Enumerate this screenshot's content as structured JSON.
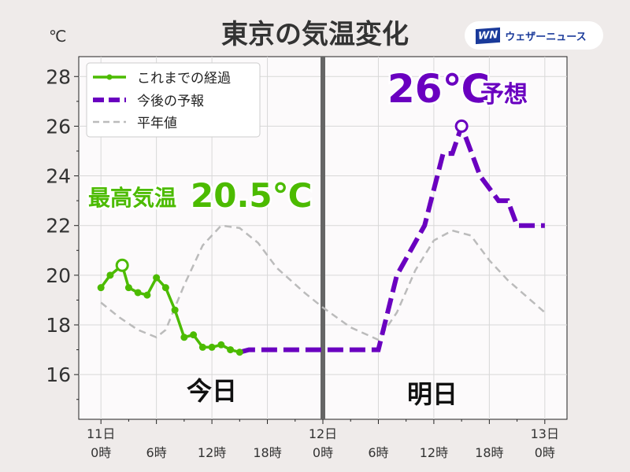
{
  "chart_data": {
    "type": "line",
    "title": "東京の気温変化",
    "ylabel": "℃",
    "ylim": [
      14.2,
      28.8
    ],
    "xlim": [
      -2.4,
      50.4
    ],
    "yticks": [
      16,
      18,
      20,
      22,
      24,
      26,
      28
    ],
    "xticks": [
      {
        "x": 0,
        "l1": "11日",
        "l2": "0時"
      },
      {
        "x": 6,
        "l1": "",
        "l2": "6時"
      },
      {
        "x": 12,
        "l1": "",
        "l2": "12時"
      },
      {
        "x": 18,
        "l1": "",
        "l2": "18時"
      },
      {
        "x": 24,
        "l1": "12日",
        "l2": "0時"
      },
      {
        "x": 30,
        "l1": "",
        "l2": "6時"
      },
      {
        "x": 36,
        "l1": "",
        "l2": "12時"
      },
      {
        "x": 42,
        "l1": "",
        "l2": "18時"
      },
      {
        "x": 48,
        "l1": "13日",
        "l2": "0時"
      }
    ],
    "series": [
      {
        "name": "これまでの経過",
        "color": "#4cbb00",
        "x": [
          0,
          1,
          2.3,
          3,
          4,
          5,
          6,
          7,
          8,
          9,
          10,
          11,
          12,
          13,
          14,
          15
        ],
        "y": [
          19.5,
          20.0,
          20.4,
          19.5,
          19.3,
          19.2,
          19.9,
          19.5,
          18.6,
          17.5,
          17.6,
          17.1,
          17.1,
          17.2,
          17.0,
          16.9
        ]
      },
      {
        "name": "今後の予報",
        "color": "#6a00c0",
        "x": [
          15,
          16,
          30,
          32,
          35,
          37,
          38,
          39,
          41,
          43,
          44,
          45,
          48
        ],
        "y": [
          16.9,
          17,
          17,
          20,
          22,
          24.9,
          24.9,
          26,
          24,
          23,
          23,
          22,
          22
        ]
      },
      {
        "name": "平年値",
        "color": "#bbbbbb",
        "x": [
          0,
          2,
          4,
          6,
          7,
          9,
          11,
          13,
          15,
          17,
          19,
          22,
          24,
          27,
          30,
          32,
          34,
          36,
          38,
          40,
          42,
          44,
          48
        ],
        "y": [
          18.9,
          18.3,
          17.8,
          17.5,
          17.8,
          19.6,
          21.2,
          22.0,
          21.9,
          21.3,
          20.3,
          19.3,
          18.7,
          17.9,
          17.4,
          18.5,
          20.2,
          21.4,
          21.8,
          21.6,
          20.6,
          19.8,
          18.5
        ]
      }
    ],
    "now_line_x": 24,
    "annotations": {
      "max_label": "最高気温",
      "max_value": "20.5℃",
      "forecast_value": "26℃",
      "forecast_suffix": "予想",
      "today": "今日",
      "tomorrow": "明日"
    },
    "legend_position": "top-left"
  },
  "logo": {
    "mark": "WN",
    "text": "ウェザーニュース"
  }
}
